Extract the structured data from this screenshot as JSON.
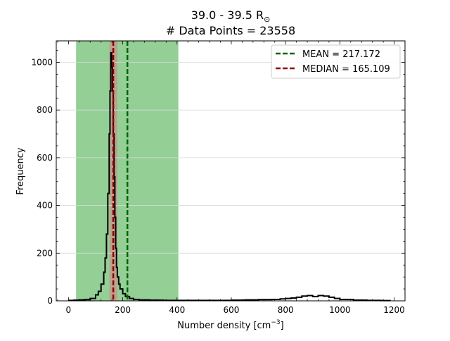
{
  "chart_data": {
    "type": "line",
    "title_main": "39.0 - 39.5 R",
    "title_symbol": "⊙",
    "title_line2": "# Data Points = 23558",
    "xlabel": "Number density [cm",
    "xlabel_exp": "−3",
    "xlabel_close": "]",
    "ylabel": "Frequency",
    "xlim": [
      -45,
      1240
    ],
    "ylim": [
      0,
      1090
    ],
    "x_ticks": [
      0,
      200,
      400,
      600,
      800,
      1000,
      1200
    ],
    "y_ticks": [
      0,
      200,
      400,
      600,
      800,
      1000
    ],
    "grid": "horizontal",
    "shaded_regions": [
      {
        "x0": 28,
        "x1": 405,
        "color": "#4caf50"
      },
      {
        "x0": 151,
        "x1": 180,
        "color": "#c8938a"
      }
    ],
    "mean": {
      "label": "MEAN = 217.172",
      "value": 217.172,
      "color": "#006400"
    },
    "median": {
      "label": "MEDIAN = 165.109",
      "value": 165.109,
      "color": "#8b0000"
    },
    "legend_position": "top-right",
    "histogram": {
      "x": [
        0,
        20,
        40,
        60,
        80,
        100,
        110,
        120,
        130,
        135,
        140,
        145,
        150,
        153,
        156,
        159,
        162,
        165,
        168,
        171,
        174,
        177,
        180,
        185,
        190,
        200,
        210,
        225,
        240,
        260,
        300,
        350,
        400,
        450,
        500,
        550,
        600,
        650,
        700,
        750,
        780,
        800,
        820,
        840,
        860,
        880,
        900,
        920,
        940,
        960,
        980,
        1000,
        1050,
        1100,
        1150,
        1185
      ],
      "y": [
        2,
        3,
        4,
        5,
        10,
        25,
        40,
        70,
        120,
        180,
        280,
        450,
        700,
        880,
        1040,
        980,
        880,
        700,
        520,
        350,
        220,
        140,
        100,
        70,
        50,
        30,
        18,
        10,
        6,
        4,
        3,
        2,
        2,
        2,
        2,
        2,
        3,
        4,
        5,
        6,
        8,
        10,
        12,
        15,
        20,
        22,
        18,
        22,
        20,
        15,
        10,
        6,
        3,
        2,
        1,
        0
      ]
    }
  }
}
